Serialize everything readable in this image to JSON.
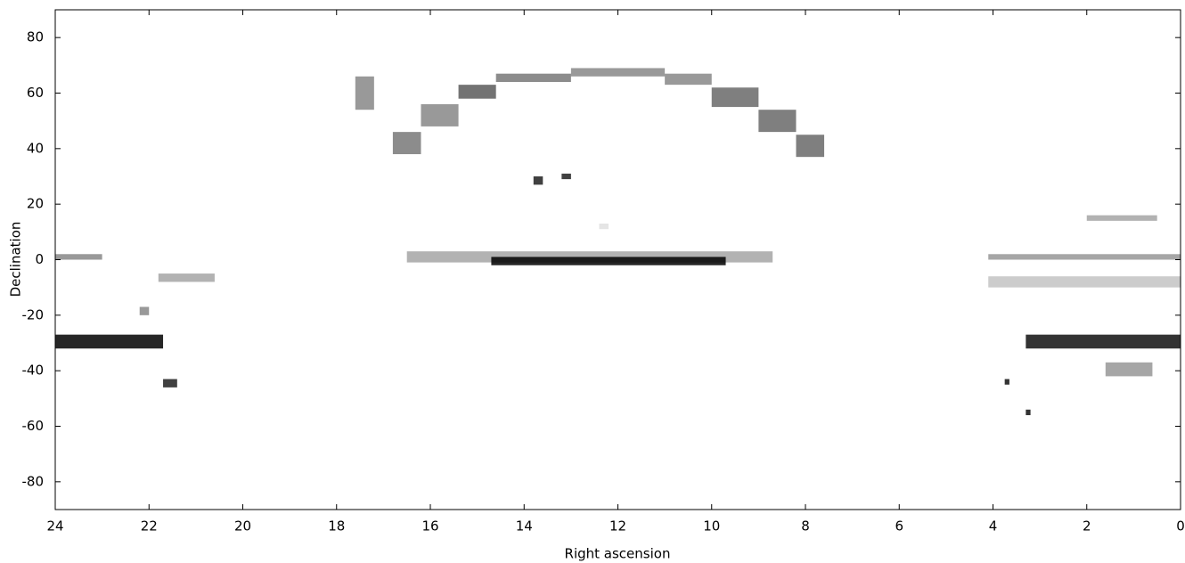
{
  "chart_data": {
    "type": "density-map",
    "x_label": "Right ascension",
    "y_label": "Declination",
    "xlim": [
      24,
      0
    ],
    "ylim": [
      -90,
      90
    ],
    "xticks": [
      24,
      22,
      20,
      18,
      16,
      14,
      12,
      10,
      8,
      6,
      4,
      2,
      0
    ],
    "yticks": [
      -80,
      -60,
      -40,
      -20,
      0,
      20,
      40,
      60,
      80
    ],
    "color": "#000000",
    "regions": [
      {
        "ra": [
          24,
          21.7
        ],
        "dec": [
          -32,
          -27
        ],
        "density": 0.85
      },
      {
        "ra": [
          3.3,
          0
        ],
        "dec": [
          -32,
          -27
        ],
        "density": 0.8
      },
      {
        "ra": [
          14.7,
          9.7
        ],
        "dec": [
          -2,
          1
        ],
        "density": 0.85
      },
      {
        "ra": [
          16.5,
          8.7
        ],
        "dec": [
          -1,
          3
        ],
        "density": 0.3
      },
      {
        "ra": [
          24,
          23
        ],
        "dec": [
          0,
          2
        ],
        "density": 0.4
      },
      {
        "ra": [
          4.1,
          0
        ],
        "dec": [
          0,
          2
        ],
        "density": 0.35
      },
      {
        "ra": [
          4.1,
          0
        ],
        "dec": [
          -10,
          -6
        ],
        "density": 0.2
      },
      {
        "ra": [
          2,
          0.5
        ],
        "dec": [
          14,
          16
        ],
        "density": 0.3
      },
      {
        "ra": [
          21.8,
          20.6
        ],
        "dec": [
          -8,
          -5
        ],
        "density": 0.3
      },
      {
        "ra": [
          16.8,
          16.2
        ],
        "dec": [
          38,
          46
        ],
        "density": 0.45
      },
      {
        "ra": [
          16.2,
          15.4
        ],
        "dec": [
          48,
          56
        ],
        "density": 0.4
      },
      {
        "ra": [
          15.4,
          14.6
        ],
        "dec": [
          58,
          63
        ],
        "density": 0.55
      },
      {
        "ra": [
          14.6,
          13.0
        ],
        "dec": [
          64,
          67
        ],
        "density": 0.45
      },
      {
        "ra": [
          13.0,
          11.0
        ],
        "dec": [
          66,
          69
        ],
        "density": 0.4
      },
      {
        "ra": [
          11.0,
          10.0
        ],
        "dec": [
          63,
          67
        ],
        "density": 0.4
      },
      {
        "ra": [
          10.0,
          9.0
        ],
        "dec": [
          55,
          62
        ],
        "density": 0.5
      },
      {
        "ra": [
          9.0,
          8.2
        ],
        "dec": [
          46,
          54
        ],
        "density": 0.5
      },
      {
        "ra": [
          8.2,
          7.6
        ],
        "dec": [
          37,
          45
        ],
        "density": 0.5
      },
      {
        "ra": [
          17.6,
          17.2
        ],
        "dec": [
          54,
          66
        ],
        "density": 0.4
      },
      {
        "ra": [
          21.7,
          21.4
        ],
        "dec": [
          -46,
          -43
        ],
        "density": 0.75
      },
      {
        "ra": [
          13.8,
          13.6
        ],
        "dec": [
          27,
          30
        ],
        "density": 0.75
      },
      {
        "ra": [
          13.2,
          13.0
        ],
        "dec": [
          29,
          31
        ],
        "density": 0.75
      },
      {
        "ra": [
          22.2,
          22.0
        ],
        "dec": [
          -20,
          -17
        ],
        "density": 0.4
      },
      {
        "ra": [
          1.6,
          0.6
        ],
        "dec": [
          -42,
          -37
        ],
        "density": 0.35
      },
      {
        "ra": [
          3.75,
          3.65
        ],
        "dec": [
          -45,
          -43
        ],
        "density": 0.8
      },
      {
        "ra": [
          3.3,
          3.2
        ],
        "dec": [
          -56,
          -54
        ],
        "density": 0.8
      },
      {
        "ra": [
          12.4,
          12.2
        ],
        "dec": [
          11,
          13
        ],
        "density": 0.1
      }
    ]
  }
}
